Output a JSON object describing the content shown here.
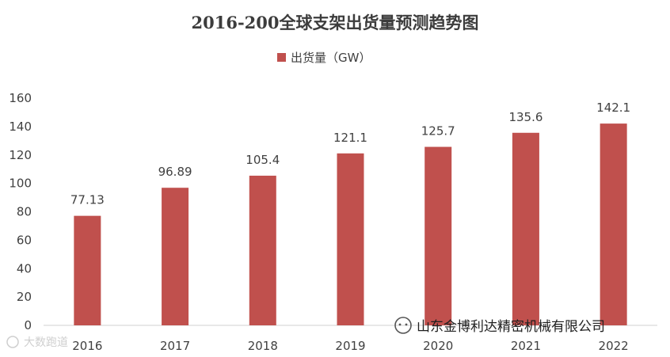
{
  "chart_data": {
    "type": "bar",
    "title": "2016-200全球支架出货量预测趋势图",
    "legend": "出货量（GW）",
    "legend_position": "top-center",
    "categories": [
      "2016",
      "2017",
      "2018",
      "2019",
      "2020",
      "2021",
      "2022"
    ],
    "series": [
      {
        "name": "出货量（GW）",
        "values": [
          77.13,
          96.89,
          105.4,
          121.1,
          125.7,
          135.6,
          142.1
        ]
      }
    ],
    "data_labels": [
      "77.13",
      "96.89",
      "105.4",
      "121.1",
      "125.7",
      "135.6",
      "142.1"
    ],
    "ylim": [
      0,
      160
    ],
    "yticks": [
      "0",
      "20",
      "40",
      "60",
      "80",
      "100",
      "120",
      "140",
      "160"
    ],
    "xlabel": "",
    "ylabel": "",
    "grid": false,
    "bar_color": "#c0504d"
  },
  "watermark": {
    "corner_text": "大数跑道",
    "source_text": "山东金博利达精密机械有限公司"
  }
}
